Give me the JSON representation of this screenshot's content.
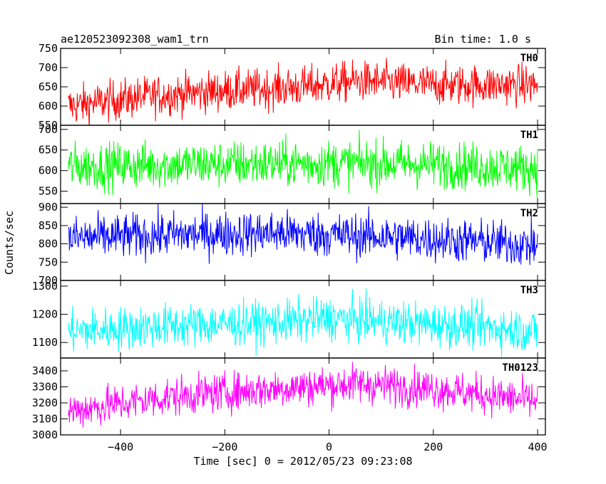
{
  "chart_data": {
    "type": "line",
    "title_left": "ae120523092308_wam1_trn",
    "title_right": "Bin time: 1.0 s",
    "xlabel": "Time [sec] 0 = 2012/05/23 09:23:08",
    "ylabel": "Counts/sec",
    "xlim": [
      -515,
      415
    ],
    "x_range": [
      -500,
      400
    ],
    "bin_time": 1.0,
    "x_ticks": [
      -400,
      -200,
      0,
      200,
      400
    ],
    "x_tick_labels": [
      "−400",
      "−200",
      "0",
      "200",
      "400"
    ],
    "panels": [
      {
        "name": "TH0",
        "color": "#ff0000",
        "ylim": [
          550,
          750
        ],
        "y_ticks": [
          550,
          600,
          650,
          700,
          750
        ],
        "trend": [
          [
            -500,
            600
          ],
          [
            -350,
            625
          ],
          [
            -200,
            640
          ],
          [
            -50,
            650
          ],
          [
            50,
            665
          ],
          [
            200,
            655
          ],
          [
            400,
            655
          ]
        ],
        "noise": 26
      },
      {
        "name": "TH1",
        "color": "#00ff00",
        "ylim": [
          520,
          710
        ],
        "y_ticks": [
          550,
          600,
          650,
          700
        ],
        "trend": [
          [
            -500,
            610
          ],
          [
            -250,
            615
          ],
          [
            0,
            618
          ],
          [
            200,
            615
          ],
          [
            400,
            605
          ]
        ],
        "noise": 28
      },
      {
        "name": "TH2",
        "color": "#0000ff",
        "ylim": [
          700,
          910
        ],
        "y_ticks": [
          700,
          750,
          800,
          850,
          900
        ],
        "trend": [
          [
            -500,
            815
          ],
          [
            -300,
            825
          ],
          [
            -100,
            830
          ],
          [
            100,
            820
          ],
          [
            300,
            805
          ],
          [
            400,
            795
          ]
        ],
        "noise": 30
      },
      {
        "name": "TH3",
        "color": "#00ffff",
        "ylim": [
          1045,
          1320
        ],
        "y_ticks": [
          1100,
          1200,
          1300
        ],
        "trend": [
          [
            -500,
            1140
          ],
          [
            -300,
            1160
          ],
          [
            -100,
            1170
          ],
          [
            0,
            1185
          ],
          [
            150,
            1170
          ],
          [
            300,
            1155
          ],
          [
            400,
            1140
          ]
        ],
        "noise": 38
      },
      {
        "name": "TH0123",
        "color": "#ff00ff",
        "ylim": [
          3000,
          3480
        ],
        "y_ticks": [
          3000,
          3100,
          3200,
          3300,
          3400
        ],
        "trend": [
          [
            -500,
            3150
          ],
          [
            -300,
            3240
          ],
          [
            -100,
            3290
          ],
          [
            50,
            3320
          ],
          [
            200,
            3290
          ],
          [
            400,
            3210
          ]
        ],
        "noise": 60
      }
    ]
  }
}
